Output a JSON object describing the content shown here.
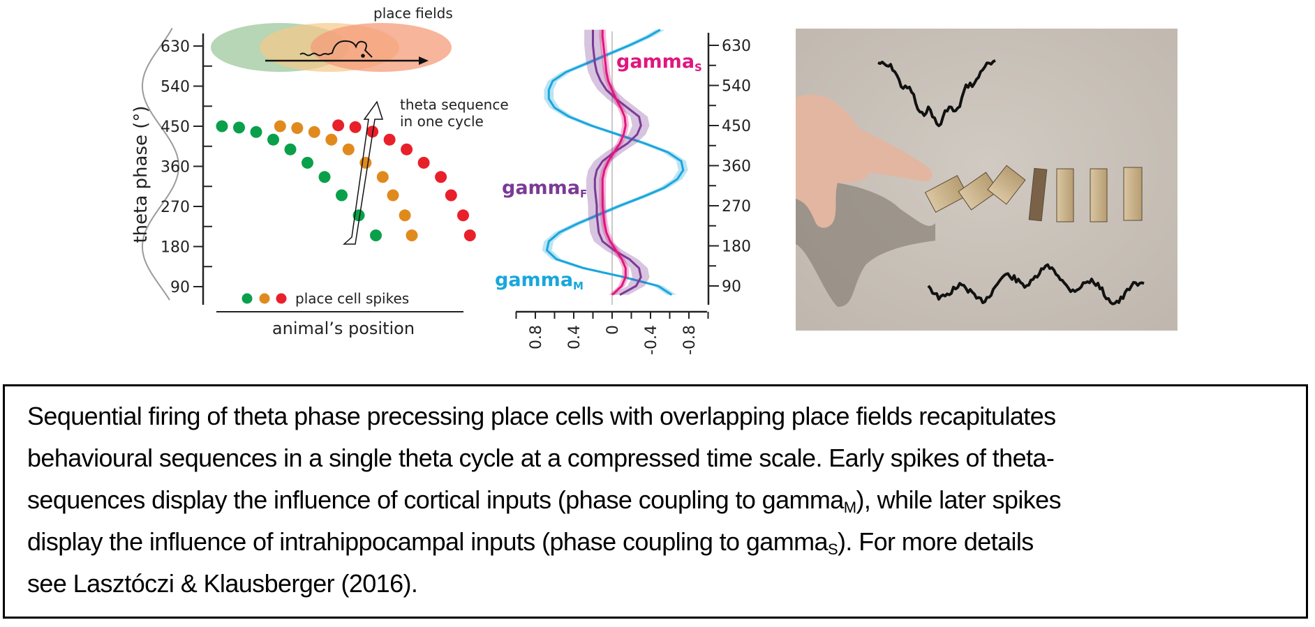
{
  "panel_a": {
    "place_fields_label": "place fields",
    "y_axis_label": "theta phase (°)",
    "y_ticks": [
      "630",
      "540",
      "450",
      "360",
      "270",
      "180",
      "90"
    ],
    "annotation_line1": "theta sequence",
    "annotation_line2": "in one cycle",
    "legend_label": "place cell spikes",
    "x_axis_label": "animal’s position",
    "colors": {
      "green": "#0aa04b",
      "orange": "#e08a1e",
      "red": "#e8202a",
      "field_green": "#a9cfa8",
      "field_orange": "#f6c889",
      "field_red": "#f49c7a"
    }
  },
  "panel_b": {
    "y_ticks": [
      "630",
      "540",
      "450",
      "360",
      "270",
      "180",
      "90"
    ],
    "x_ticks": [
      "0.8",
      "0.4",
      "0",
      "-0.4",
      "-0.8"
    ],
    "labels": {
      "gamma_s": {
        "base": "gamma",
        "sub": "S"
      },
      "gamma_f": {
        "base": "gamma",
        "sub": "F"
      },
      "gamma_m": {
        "base": "gamma",
        "sub": "M"
      }
    },
    "colors": {
      "gamma_s": "#e0167f",
      "gamma_f": "#7b3a96",
      "gamma_m": "#19a6dc"
    }
  },
  "panel_c": {
    "description_icon": "domino-photo",
    "background": "#c9c1b9"
  },
  "chart_data": [
    {
      "type": "scatter",
      "title": "",
      "xlabel": "animal’s position",
      "ylabel": "theta phase (°)",
      "ylim": [
        45,
        675
      ],
      "y_ticks": [
        90,
        180,
        270,
        360,
        450,
        540,
        630
      ],
      "series": [
        {
          "name": "green place cell",
          "x": [
            1,
            2,
            3,
            4,
            5,
            6,
            7,
            8,
            9,
            10
          ],
          "y": [
            450,
            447,
            437,
            420,
            398,
            368,
            336,
            295,
            250,
            205
          ]
        },
        {
          "name": "orange place cell",
          "x": [
            4.4,
            5.4,
            6.4,
            7.4,
            8.4,
            9.4,
            10.4,
            11,
            11.7,
            12.1
          ],
          "y": [
            450,
            446,
            437,
            420,
            398,
            368,
            336,
            295,
            250,
            205
          ]
        },
        {
          "name": "red place cell",
          "x": [
            7.8,
            8.8,
            9.8,
            10.8,
            11.8,
            12.8,
            13.8,
            14.4,
            15.1,
            15.5
          ],
          "y": [
            452,
            448,
            438,
            420,
            398,
            368,
            336,
            295,
            250,
            205
          ]
        }
      ]
    },
    {
      "type": "line",
      "title": "",
      "xlabel": "",
      "ylabel": "theta phase (°)",
      "xlim": [
        1.0,
        -1.0
      ],
      "ylim": [
        45,
        675
      ],
      "x_ticks": [
        0.8,
        0.4,
        0,
        -0.4,
        -0.8
      ],
      "phase": [
        70,
        90,
        110,
        130,
        150,
        170,
        190,
        210,
        230,
        250,
        270,
        290,
        310,
        330,
        350,
        370,
        390,
        410,
        430,
        450,
        470,
        490,
        510,
        530,
        550,
        570,
        590,
        610,
        630,
        650,
        665
      ],
      "series": [
        {
          "name": "gammaM",
          "values": [
            -0.62,
            -0.48,
            -0.12,
            0.3,
            0.58,
            0.68,
            0.66,
            0.55,
            0.36,
            0.14,
            -0.08,
            -0.32,
            -0.54,
            -0.68,
            -0.74,
            -0.72,
            -0.58,
            -0.34,
            -0.06,
            0.22,
            0.45,
            0.6,
            0.66,
            0.66,
            0.62,
            0.48,
            0.26,
            0.04,
            -0.18,
            -0.38,
            -0.5
          ]
        },
        {
          "name": "gammaF",
          "values": [
            -0.08,
            -0.25,
            -0.3,
            -0.28,
            -0.18,
            -0.02,
            0.1,
            0.14,
            0.15,
            0.16,
            0.16,
            0.17,
            0.18,
            0.18,
            0.16,
            0.1,
            -0.02,
            -0.16,
            -0.26,
            -0.3,
            -0.28,
            -0.16,
            -0.04,
            0.06,
            0.12,
            0.16,
            0.18,
            0.19,
            0.2,
            0.2,
            0.2
          ]
        },
        {
          "name": "gammaS",
          "values": [
            0.0,
            -0.1,
            -0.14,
            -0.14,
            -0.1,
            -0.04,
            0.02,
            0.06,
            0.08,
            0.09,
            0.1,
            0.1,
            0.1,
            0.1,
            0.08,
            0.04,
            -0.02,
            -0.08,
            -0.12,
            -0.14,
            -0.13,
            -0.09,
            -0.04,
            0.0,
            0.04,
            0.06,
            0.07,
            0.08,
            0.09,
            0.1,
            0.1
          ]
        }
      ]
    }
  ],
  "caption": {
    "line1": "Sequential firing of theta phase precessing place cells with overlapping place fields recapitulates",
    "line2": "behavioural sequences in a single theta cycle at a compressed time scale. Early spikes of theta-",
    "line3_a": "sequences display the influence of cortical inputs (phase coupling to gamma",
    "line3_sub": "M",
    "line3_b": "), while later spikes",
    "line4_a": "display the influence of intrahippocampal inputs (phase coupling to gamma",
    "line4_sub": "S",
    "line4_b": "). For more details",
    "line5": "see Lasztóczi & Klausberger (2016)."
  }
}
